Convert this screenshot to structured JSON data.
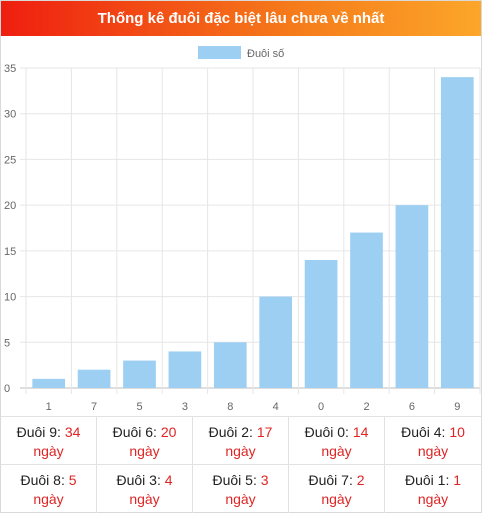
{
  "header": {
    "title": "Thống kê đuôi đặc biệt lâu chưa về nhất"
  },
  "colors": {
    "bar": "#9dcff3",
    "value_text": "#e02424",
    "header_start": "#ef1e10",
    "header_end": "#fca62a"
  },
  "chart_data": {
    "type": "bar",
    "categories": [
      "1",
      "7",
      "5",
      "3",
      "8",
      "4",
      "0",
      "2",
      "6",
      "9"
    ],
    "series": [
      {
        "name": "Đuôi số",
        "values": [
          1,
          2,
          3,
          4,
          5,
          10,
          14,
          17,
          20,
          34
        ]
      }
    ],
    "ylim": [
      0,
      35
    ],
    "yticks": [
      0,
      5,
      10,
      15,
      20,
      25,
      30,
      35
    ],
    "grid": true,
    "legend": "top-center"
  },
  "stats": [
    {
      "label": "Đuôi 9:",
      "value": "34",
      "unit": "ngày"
    },
    {
      "label": "Đuôi 6:",
      "value": "20",
      "unit": "ngày"
    },
    {
      "label": "Đuôi 2:",
      "value": "17",
      "unit": "ngày"
    },
    {
      "label": "Đuôi 0:",
      "value": "14",
      "unit": "ngày"
    },
    {
      "label": "Đuôi 4:",
      "value": "10",
      "unit": "ngày"
    },
    {
      "label": "Đuôi 8:",
      "value": "5",
      "unit": "ngày"
    },
    {
      "label": "Đuôi 3:",
      "value": "4",
      "unit": "ngày"
    },
    {
      "label": "Đuôi 5:",
      "value": "3",
      "unit": "ngày"
    },
    {
      "label": "Đuôi 7:",
      "value": "2",
      "unit": "ngày"
    },
    {
      "label": "Đuôi 1:",
      "value": "1",
      "unit": "ngày"
    }
  ]
}
